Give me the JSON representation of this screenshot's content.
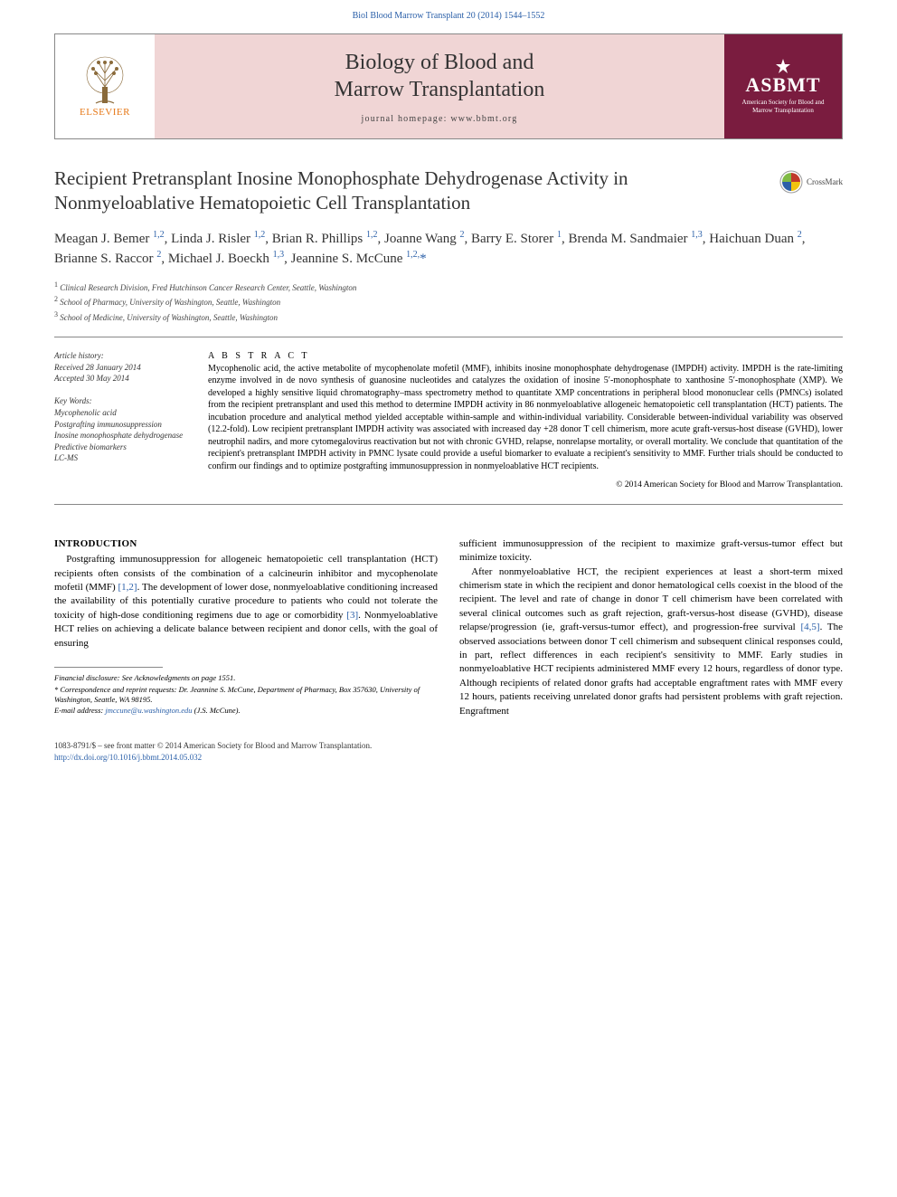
{
  "header_citation": "Biol Blood Marrow Transplant 20 (2014) 1544–1552",
  "journal": {
    "publisher": "ELSEVIER",
    "name_line1": "Biology of Blood and",
    "name_line2": "Marrow Transplantation",
    "homepage": "journal homepage: www.bbmt.org",
    "society_abbr": "ASBMT",
    "society_full": "American Society for Blood and Marrow Transplantation"
  },
  "crossmark": "CrossMark",
  "title": "Recipient Pretransplant Inosine Monophosphate Dehydrogenase Activity in Nonmyeloablative Hematopoietic Cell Transplantation",
  "authors_html": "Meagan J. Bemer <sup>1,2</sup>, Linda J. Risler <sup>1,2</sup>, Brian R. Phillips <sup>1,2</sup>, Joanne Wang <sup>2</sup>, Barry E. Storer <sup>1</sup>, Brenda M. Sandmaier <sup>1,3</sup>, Haichuan Duan <sup>2</sup>, Brianne S. Raccor <sup>2</sup>, Michael J. Boeckh <sup>1,3</sup>, Jeannine S. McCune <sup>1,2,</sup><span class=\"corr\">*</span>",
  "affiliations": [
    "Clinical Research Division, Fred Hutchinson Cancer Research Center, Seattle, Washington",
    "School of Pharmacy, University of Washington, Seattle, Washington",
    "School of Medicine, University of Washington, Seattle, Washington"
  ],
  "history": {
    "label": "Article history:",
    "received": "Received 28 January 2014",
    "accepted": "Accepted 30 May 2014"
  },
  "keywords": {
    "label": "Key Words:",
    "items": [
      "Mycophenolic acid",
      "Postgrafting immunosuppression",
      "Inosine monophosphate dehydrogenase",
      "Predictive biomarkers",
      "LC-MS"
    ]
  },
  "abstract": {
    "label": "A B S T R A C T",
    "text": "Mycophenolic acid, the active metabolite of mycophenolate mofetil (MMF), inhibits inosine monophosphate dehydrogenase (IMPDH) activity. IMPDH is the rate-limiting enzyme involved in de novo synthesis of guanosine nucleotides and catalyzes the oxidation of inosine 5′-monophosphate to xanthosine 5′-monophosphate (XMP). We developed a highly sensitive liquid chromatography–mass spectrometry method to quantitate XMP concentrations in peripheral blood mononuclear cells (PMNCs) isolated from the recipient pretransplant and used this method to determine IMPDH activity in 86 nonmyeloablative allogeneic hematopoietic cell transplantation (HCT) patients. The incubation procedure and analytical method yielded acceptable within-sample and within-individual variability. Considerable between-individual variability was observed (12.2-fold). Low recipient pretransplant IMPDH activity was associated with increased day +28 donor T cell chimerism, more acute graft-versus-host disease (GVHD), lower neutrophil nadirs, and more cytomegalovirus reactivation but not with chronic GVHD, relapse, nonrelapse mortality, or overall mortality. We conclude that quantitation of the recipient's pretransplant IMPDH activity in PMNC lysate could provide a useful biomarker to evaluate a recipient's sensitivity to MMF. Further trials should be conducted to confirm our findings and to optimize postgrafting immunosuppression in nonmyeloablative HCT recipients.",
    "copyright": "© 2014 American Society for Blood and Marrow Transplantation."
  },
  "section_heading": "INTRODUCTION",
  "intro_col1_p1": "Postgrafting immunosuppression for allogeneic hematopoietic cell transplantation (HCT) recipients often consists of the combination of a calcineurin inhibitor and mycophenolate mofetil (MMF) [1,2]. The development of lower dose, nonmyeloablative conditioning increased the availability of this potentially curative procedure to patients who could not tolerate the toxicity of high-dose conditioning regimens due to age or comorbidity [3]. Nonmyeloablative HCT relies on achieving a delicate balance between recipient and donor cells, with the goal of ensuring",
  "intro_col2_p1": "sufficient immunosuppression of the recipient to maximize graft-versus-tumor effect but minimize toxicity.",
  "intro_col2_p2": "After nonmyeloablative HCT, the recipient experiences at least a short-term mixed chimerism state in which the recipient and donor hematological cells coexist in the blood of the recipient. The level and rate of change in donor T cell chimerism have been correlated with several clinical outcomes such as graft rejection, graft-versus-host disease (GVHD), disease relapse/progression (ie, graft-versus-tumor effect), and progression-free survival [4,5]. The observed associations between donor T cell chimerism and subsequent clinical responses could, in part, reflect differences in each recipient's sensitivity to MMF. Early studies in nonmyeloablative HCT recipients administered MMF every 12 hours, regardless of donor type. Although recipients of related donor grafts had acceptable engraftment rates with MMF every 12 hours, patients receiving unrelated donor grafts had persistent problems with graft rejection. Engraftment",
  "footnotes": {
    "financial": "Financial disclosure: See Acknowledgments on page 1551.",
    "correspondence": "* Correspondence and reprint requests: Dr. Jeannine S. McCune, Department of Pharmacy, Box 357630, University of Washington, Seattle, WA 98195.",
    "email_label": "E-mail address:",
    "email": "jmccune@u.washington.edu",
    "email_paren": "(J.S. McCune)."
  },
  "footer": {
    "issn": "1083-8791/$ – see front matter © 2014 American Society for Blood and Marrow Transplantation.",
    "doi_label": "http://dx.doi.org/10.1016/j.bbmt.2014.05.032",
    "doi": "10.1016/j.bbmt.2014.05.032"
  },
  "colors": {
    "link": "#2a5fa8",
    "banner_bg": "#f0d5d5",
    "society_bg": "#7a1c3f",
    "publisher": "#e67817"
  }
}
